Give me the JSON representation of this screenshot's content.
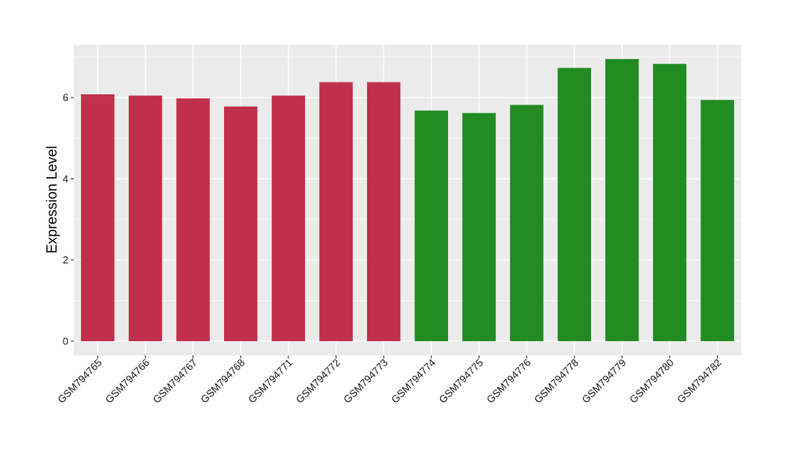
{
  "chart_data": {
    "type": "bar",
    "title": "",
    "xlabel": "",
    "ylabel": "Expression Level",
    "ylim": [
      -0.35,
      7.3
    ],
    "yticks": [
      0,
      2,
      4,
      6
    ],
    "grid": true,
    "legend": "none",
    "categories": [
      "GSM794765",
      "GSM794766",
      "GSM794767",
      "GSM794768",
      "GSM794771",
      "GSM794772",
      "GSM794773",
      "GSM794774",
      "GSM794775",
      "GSM794776",
      "GSM794778",
      "GSM794779",
      "GSM794780",
      "GSM794782"
    ],
    "values": [
      6.08,
      6.05,
      5.98,
      5.78,
      6.05,
      6.38,
      6.38,
      5.68,
      5.62,
      5.82,
      6.73,
      6.95,
      6.83,
      5.94
    ],
    "bar_colors": [
      "#c0304a",
      "#c0304a",
      "#c0304a",
      "#c0304a",
      "#c0304a",
      "#c0304a",
      "#c0304a",
      "#228b22",
      "#228b22",
      "#228b22",
      "#228b22",
      "#228b22",
      "#228b22",
      "#228b22"
    ],
    "panel_background": "#ebebeb",
    "grid_color": "#ffffff"
  }
}
